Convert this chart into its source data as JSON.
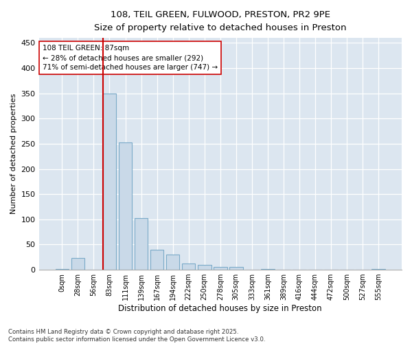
{
  "title_line1": "108, TEIL GREEN, FULWOOD, PRESTON, PR2 9PE",
  "title_line2": "Size of property relative to detached houses in Preston",
  "xlabel": "Distribution of detached houses by size in Preston",
  "ylabel": "Number of detached properties",
  "bar_labels": [
    "0sqm",
    "28sqm",
    "56sqm",
    "83sqm",
    "111sqm",
    "139sqm",
    "167sqm",
    "194sqm",
    "222sqm",
    "250sqm",
    "278sqm",
    "305sqm",
    "333sqm",
    "361sqm",
    "389sqm",
    "416sqm",
    "444sqm",
    "472sqm",
    "500sqm",
    "527sqm",
    "555sqm"
  ],
  "bar_values": [
    2,
    23,
    0,
    350,
    252,
    102,
    40,
    30,
    13,
    10,
    5,
    5,
    0,
    1,
    0,
    0,
    0,
    0,
    0,
    0,
    1
  ],
  "bar_color": "#c9d9e8",
  "bar_edge_color": "#7aaac8",
  "background_color": "#dce6f0",
  "vline_x_index": 3,
  "vline_color": "#cc0000",
  "annotation_text": "108 TEIL GREEN: 87sqm\n← 28% of detached houses are smaller (292)\n71% of semi-detached houses are larger (747) →",
  "ylim": [
    0,
    460
  ],
  "yticks": [
    0,
    50,
    100,
    150,
    200,
    250,
    300,
    350,
    400,
    450
  ],
  "footnote": "Contains HM Land Registry data © Crown copyright and database right 2025.\nContains public sector information licensed under the Open Government Licence v3.0.",
  "figsize": [
    6.0,
    5.0
  ],
  "dpi": 100
}
